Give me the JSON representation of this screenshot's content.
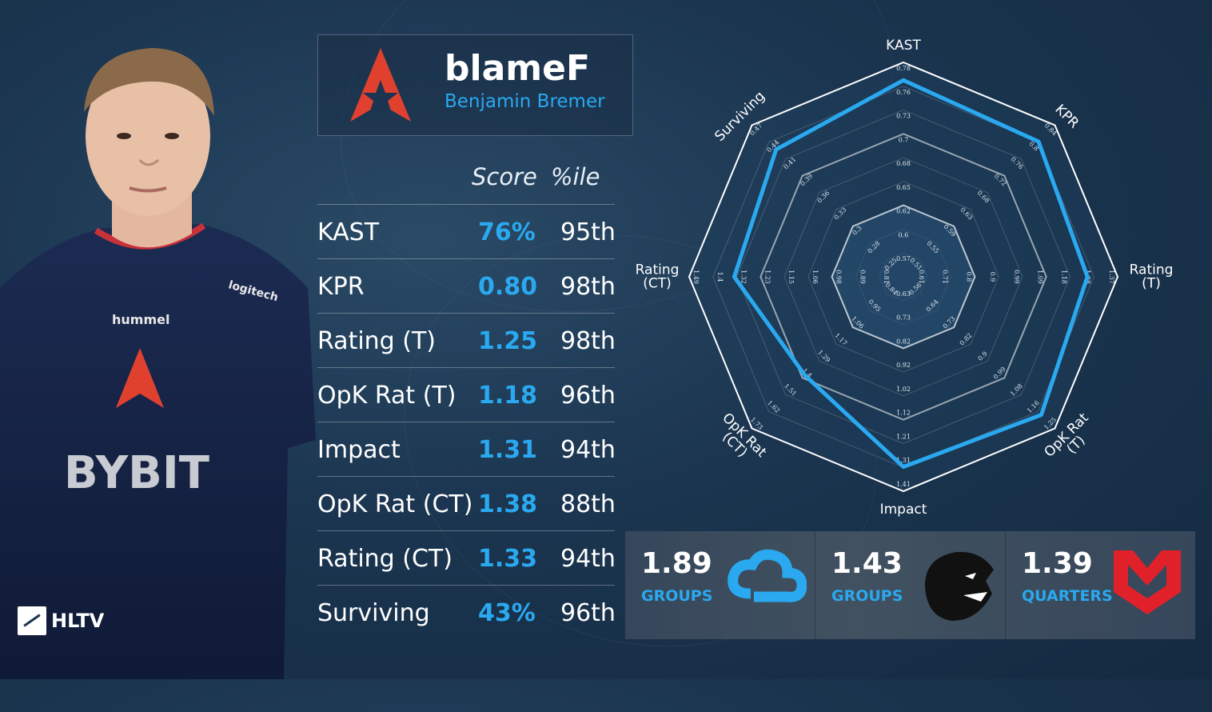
{
  "player": {
    "nickname": "blameF",
    "real_name": "Benjamin Bremer",
    "jersey_text": "BYBIT",
    "photo_icon": "player-photo"
  },
  "branding": {
    "site": "HLTV"
  },
  "colors": {
    "accent": "#2aa9f0",
    "team_red": "#e0412f",
    "background": "#1b3550"
  },
  "stats": {
    "header": {
      "score": "Score",
      "percentile": "%ile"
    },
    "rows": [
      {
        "label": "KAST",
        "score": "76%",
        "percentile": "95th"
      },
      {
        "label": "KPR",
        "score": "0.80",
        "percentile": "98th"
      },
      {
        "label": "Rating (T)",
        "score": "1.25",
        "percentile": "98th"
      },
      {
        "label": "OpK Rat (T)",
        "score": "1.18",
        "percentile": "96th"
      },
      {
        "label": "Impact",
        "score": "1.31",
        "percentile": "94th"
      },
      {
        "label": "OpK Rat (CT)",
        "score": "1.38",
        "percentile": "88th"
      },
      {
        "label": "Rating (CT)",
        "score": "1.33",
        "percentile": "94th"
      },
      {
        "label": "Surviving",
        "score": "43%",
        "percentile": "96th"
      }
    ]
  },
  "chart_data": {
    "type": "radar",
    "axes": [
      {
        "label": "KAST",
        "ticks": [
          "0.57",
          "0.6",
          "0.62",
          "0.65",
          "0.68",
          "0.7",
          "0.73",
          "0.76",
          "0.78"
        ],
        "value": 0.76,
        "min": 0.54,
        "max": 0.78
      },
      {
        "label": "KPR",
        "ticks": [
          "0.51",
          "0.55",
          "0.59",
          "0.63",
          "0.68",
          "0.72",
          "0.76",
          "0.8",
          "0.84"
        ],
        "value": 0.8,
        "min": 0.47,
        "max": 0.84
      },
      {
        "label": "Rating\n(T)",
        "ticks": [
          "0.61",
          "0.71",
          "0.8",
          "0.9",
          "0.99",
          "1.09",
          "1.18",
          "1.28",
          "1.37"
        ],
        "value": 1.25,
        "min": 0.52,
        "max": 1.37
      },
      {
        "label": "OpK Rat\n(T)",
        "ticks": [
          "0.56",
          "0.64",
          "0.73",
          "0.82",
          "0.9",
          "0.99",
          "1.08",
          "1.16",
          "1.25"
        ],
        "value": 1.18,
        "min": 0.47,
        "max": 1.25
      },
      {
        "label": "Impact",
        "ticks": [
          "0.63",
          "0.73",
          "0.82",
          "0.92",
          "1.02",
          "1.12",
          "1.21",
          "1.31",
          "1.41"
        ],
        "value": 1.31,
        "min": 0.53,
        "max": 1.41
      },
      {
        "label": "OpK Rat\n(CT)",
        "ticks": [
          "0.84",
          "0.95",
          "1.06",
          "1.17",
          "1.29",
          "1.4",
          "1.51",
          "1.62",
          "1.73"
        ],
        "value": 1.38,
        "min": 0.73,
        "max": 1.73
      },
      {
        "label": "Rating\n(CT)",
        "ticks": [
          "0.81",
          "0.89",
          "0.98",
          "1.06",
          "1.15",
          "1.23",
          "1.32",
          "1.4",
          "1.49"
        ],
        "value": 1.33,
        "min": 0.73,
        "max": 1.49
      },
      {
        "label": "Surviving",
        "ticks": [
          "0.25",
          "0.28",
          "0.3",
          "0.33",
          "0.36",
          "0.39",
          "0.41",
          "0.44",
          "0.47"
        ],
        "value": 0.43,
        "min": 0.22,
        "max": 0.47
      }
    ],
    "outer_ring_ticks": 8
  },
  "events": [
    {
      "rating": "1.89",
      "stage": "GROUPS",
      "team_icon": "cloud9-logo-icon",
      "color": "#2aa9f0"
    },
    {
      "rating": "1.43",
      "stage": "GROUPS",
      "team_icon": "furia-panther-icon",
      "color": "#111111"
    },
    {
      "rating": "1.39",
      "stage": "QUARTERS",
      "team_icon": "mouz-logo-icon",
      "color": "#e0212a"
    }
  ]
}
